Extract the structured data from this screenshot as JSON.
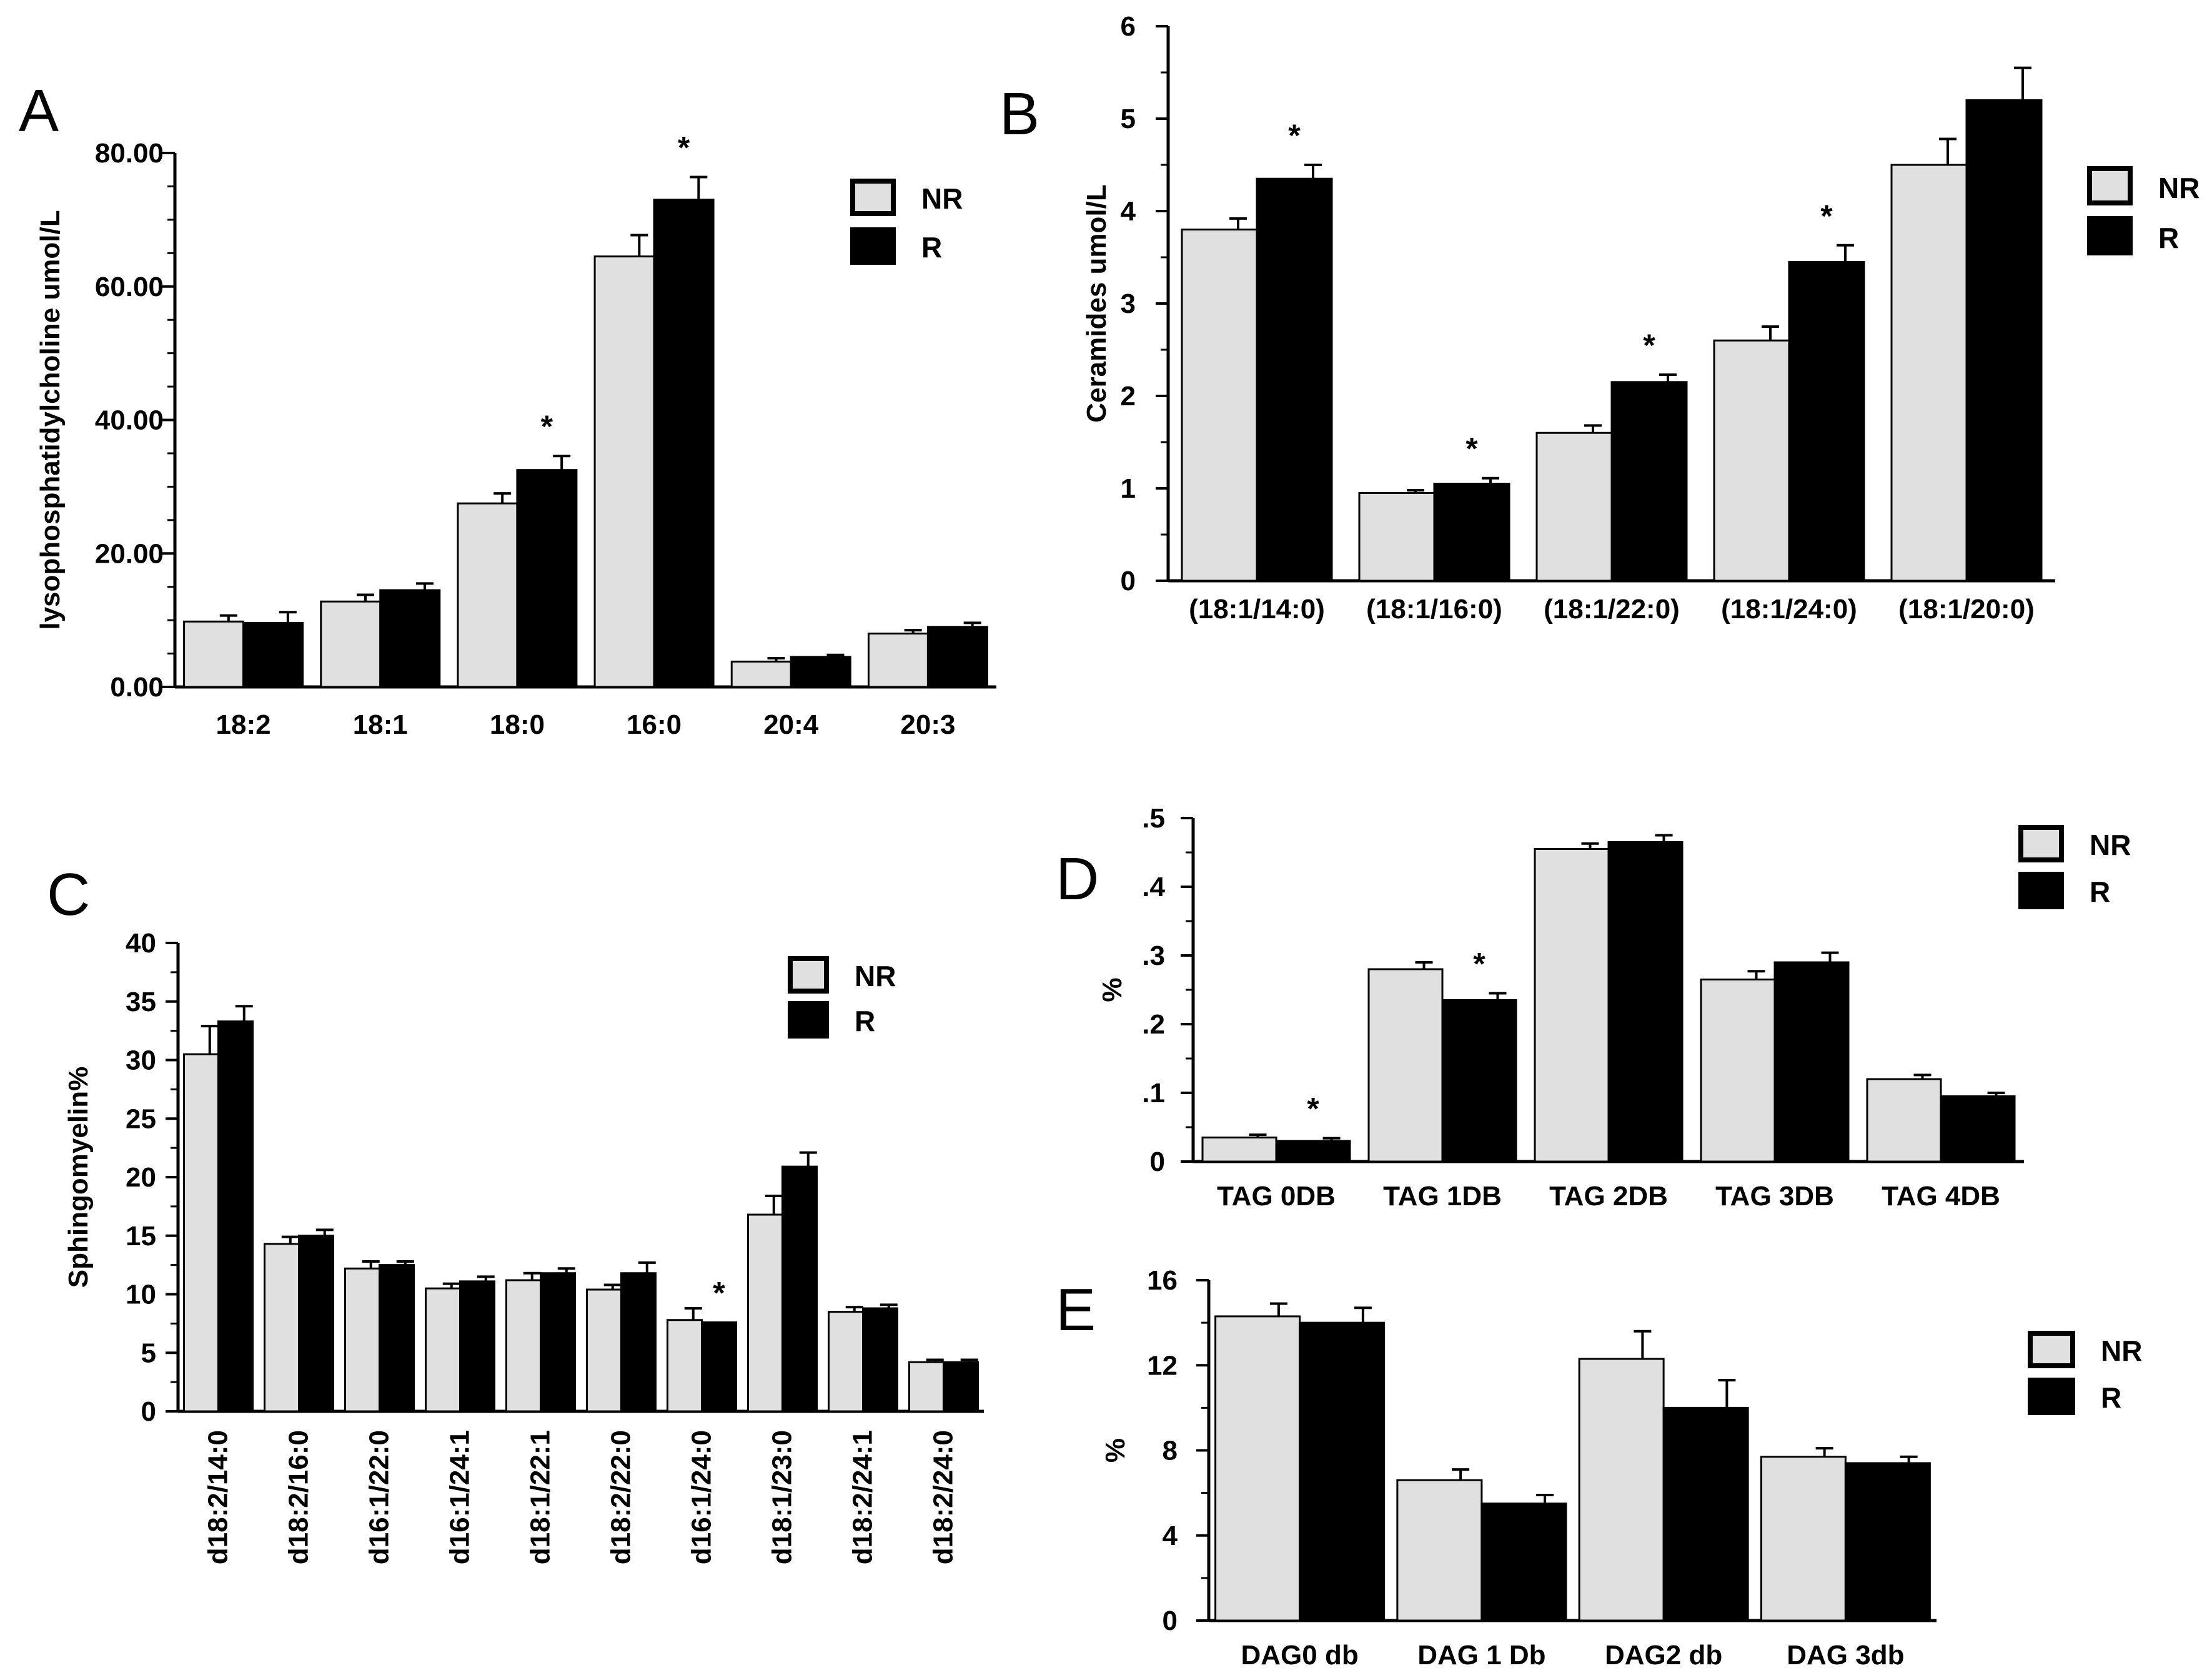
{
  "colors": {
    "NR": "#e0e0e0",
    "R": "#000000"
  },
  "chart_data": [
    {
      "id": "A",
      "type": "bar",
      "panel_label": "A",
      "ylabel": "lysophosphatidylcholine umol/L",
      "ylim": [
        0,
        80
      ],
      "yticks": [
        0,
        20,
        40,
        60,
        80
      ],
      "ytick_labels": [
        "0.00",
        "20.00",
        "40.00",
        "60.00",
        "80.00"
      ],
      "legend": [
        "NR",
        "R"
      ],
      "categories": [
        "18:2",
        "18:1",
        "18:0",
        "16:0",
        "20:4",
        "20:3"
      ],
      "series": [
        {
          "name": "NR",
          "values": [
            9.8,
            12.8,
            27.5,
            64.5,
            3.8,
            8.0
          ],
          "errors": [
            0.9,
            1.0,
            1.5,
            3.2,
            0.5,
            0.5
          ]
        },
        {
          "name": "R",
          "values": [
            9.6,
            14.5,
            32.5,
            73.0,
            4.5,
            9.0
          ],
          "errors": [
            1.6,
            1.0,
            2.1,
            3.4,
            0.3,
            0.6
          ]
        }
      ],
      "significance": [
        false,
        false,
        true,
        true,
        false,
        false
      ],
      "star_label": "*"
    },
    {
      "id": "B",
      "type": "bar",
      "panel_label": "B",
      "ylabel": "Ceramides umol/L",
      "ylim": [
        0,
        6
      ],
      "yticks": [
        0,
        1,
        2,
        3,
        4,
        5,
        6
      ],
      "ytick_labels": [
        "0",
        "1",
        "2",
        "3",
        "4",
        "5",
        "6"
      ],
      "legend": [
        "NR",
        "R"
      ],
      "categories": [
        "(18:1/14:0)",
        "(18:1/16:0)",
        "(18:1/22:0)",
        "(18:1/24:0)",
        "(18:1/20:0)"
      ],
      "series": [
        {
          "name": "NR",
          "values": [
            3.8,
            0.95,
            1.6,
            2.6,
            4.5
          ],
          "errors": [
            0.12,
            0.03,
            0.08,
            0.15,
            0.28
          ]
        },
        {
          "name": "R",
          "values": [
            4.35,
            1.05,
            2.15,
            3.45,
            5.2
          ],
          "errors": [
            0.15,
            0.06,
            0.08,
            0.18,
            0.35
          ]
        }
      ],
      "significance": [
        true,
        true,
        true,
        true,
        false
      ],
      "star_label": "*"
    },
    {
      "id": "C",
      "type": "bar",
      "panel_label": "C",
      "ylabel": "Sphingomyelin%",
      "ylim": [
        0,
        40
      ],
      "yticks": [
        0,
        5,
        10,
        15,
        20,
        25,
        30,
        35,
        40
      ],
      "ytick_labels": [
        "0",
        "5",
        "10",
        "15",
        "20",
        "25",
        "30",
        "35",
        "40"
      ],
      "legend": [
        "NR",
        "R"
      ],
      "categories": [
        "d18:2/14:0",
        "d18:2/16:0",
        "d16:1/22:0",
        "d16:1/24:1",
        "d18:1/22:1",
        "d18:2/22:0",
        "d16:1/24:0",
        "d18:1/23:0",
        "d18:2/24:1",
        "d18:2/24:0"
      ],
      "series": [
        {
          "name": "NR",
          "values": [
            30.5,
            14.3,
            12.2,
            10.5,
            11.2,
            10.4,
            7.8,
            16.8,
            8.5,
            4.2
          ],
          "errors": [
            2.4,
            0.6,
            0.6,
            0.4,
            0.6,
            0.4,
            1.0,
            1.6,
            0.4,
            0.2
          ]
        },
        {
          "name": "R",
          "values": [
            33.3,
            15.0,
            12.5,
            11.1,
            11.8,
            11.8,
            7.6,
            20.9,
            8.8,
            4.2
          ],
          "errors": [
            1.3,
            0.5,
            0.3,
            0.4,
            0.4,
            0.9,
            0.0,
            1.2,
            0.3,
            0.2
          ]
        }
      ],
      "significance": [
        false,
        false,
        false,
        false,
        false,
        false,
        true,
        false,
        false,
        false
      ],
      "star_label": "*"
    },
    {
      "id": "D",
      "type": "bar",
      "panel_label": "D",
      "ylabel": "%",
      "ylim": [
        0,
        0.5
      ],
      "yticks": [
        0,
        0.1,
        0.2,
        0.3,
        0.4,
        0.5
      ],
      "ytick_labels": [
        "0",
        ".1",
        ".2",
        ".3",
        ".4",
        ".5"
      ],
      "legend": [
        "NR",
        "R"
      ],
      "categories": [
        "TAG 0DB",
        "TAG 1DB",
        "TAG 2DB",
        "TAG 3DB",
        "TAG 4DB"
      ],
      "series": [
        {
          "name": "NR",
          "values": [
            0.035,
            0.28,
            0.455,
            0.265,
            0.12
          ],
          "errors": [
            0.004,
            0.01,
            0.008,
            0.012,
            0.006
          ]
        },
        {
          "name": "R",
          "values": [
            0.03,
            0.235,
            0.465,
            0.29,
            0.095
          ],
          "errors": [
            0.004,
            0.01,
            0.01,
            0.014,
            0.005
          ]
        }
      ],
      "significance": [
        true,
        true,
        false,
        false,
        false
      ],
      "star_label": "*"
    },
    {
      "id": "E",
      "type": "bar",
      "panel_label": "E",
      "ylabel": "%",
      "ylim": [
        0,
        16
      ],
      "yticks": [
        0,
        4,
        8,
        12,
        16
      ],
      "ytick_labels": [
        "0",
        "4",
        "8",
        "12",
        "16"
      ],
      "legend": [
        "NR",
        "R"
      ],
      "categories": [
        "DAG0 db",
        "DAG 1 Db",
        "DAG2 db",
        "DAG 3db"
      ],
      "series": [
        {
          "name": "NR",
          "values": [
            14.3,
            6.6,
            12.3,
            7.7
          ],
          "errors": [
            0.6,
            0.5,
            1.3,
            0.4
          ]
        },
        {
          "name": "R",
          "values": [
            14.0,
            5.5,
            10.0,
            7.4
          ],
          "errors": [
            0.7,
            0.4,
            1.3,
            0.3
          ]
        }
      ],
      "significance": [
        false,
        false,
        false,
        false
      ],
      "star_label": ""
    }
  ]
}
